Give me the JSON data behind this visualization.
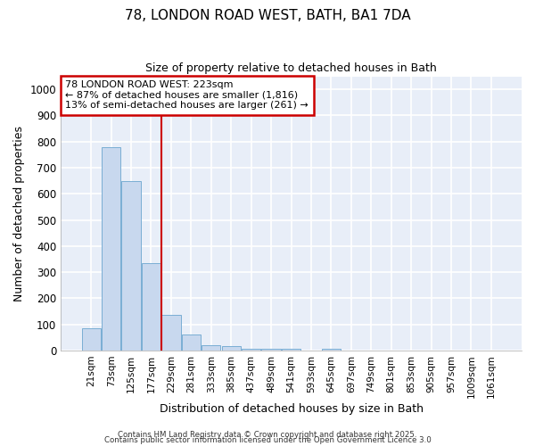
{
  "title_line1": "78, LONDON ROAD WEST, BATH, BA1 7DA",
  "title_line2": "Size of property relative to detached houses in Bath",
  "xlabel": "Distribution of detached houses by size in Bath",
  "ylabel": "Number of detached properties",
  "categories": [
    "21sqm",
    "73sqm",
    "125sqm",
    "177sqm",
    "229sqm",
    "281sqm",
    "333sqm",
    "385sqm",
    "437sqm",
    "489sqm",
    "541sqm",
    "593sqm",
    "645sqm",
    "697sqm",
    "749sqm",
    "801sqm",
    "853sqm",
    "905sqm",
    "957sqm",
    "1009sqm",
    "1061sqm"
  ],
  "bar_values": [
    85,
    780,
    648,
    335,
    135,
    60,
    22,
    18,
    5,
    5,
    5,
    0,
    5,
    0,
    0,
    0,
    0,
    0,
    0,
    0,
    0
  ],
  "bar_color": "#c8d8ee",
  "bar_edge_color": "#7aaed4",
  "vline_x_index": 4,
  "vline_color": "#cc0000",
  "annotation_text": "78 LONDON ROAD WEST: 223sqm\n← 87% of detached houses are smaller (1,816)\n13% of semi-detached houses are larger (261) →",
  "annotation_box_color": "#ffffff",
  "annotation_border_color": "#cc0000",
  "ylim": [
    0,
    1050
  ],
  "yticks": [
    0,
    100,
    200,
    300,
    400,
    500,
    600,
    700,
    800,
    900,
    1000
  ],
  "plot_bg_color": "#e8eef8",
  "fig_bg_color": "#ffffff",
  "grid_color": "#ffffff",
  "footer_line1": "Contains HM Land Registry data © Crown copyright and database right 2025.",
  "footer_line2": "Contains public sector information licensed under the Open Government Licence 3.0"
}
